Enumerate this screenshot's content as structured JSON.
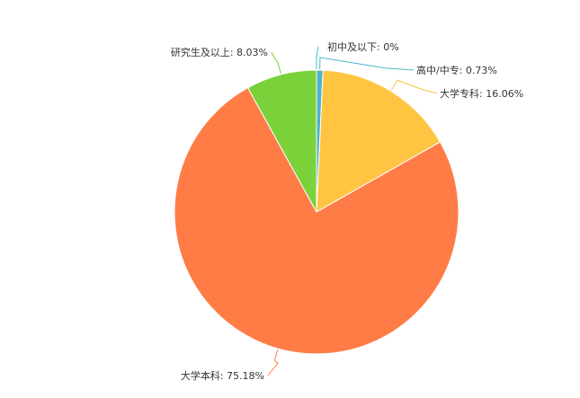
{
  "chart_data": {
    "type": "pie",
    "title": "",
    "slices": [
      {
        "label": "初中及以下",
        "value": 0,
        "display": "初中及以下: 0%",
        "color": "#2ec7c9"
      },
      {
        "label": "高中/中专",
        "value": 0.73,
        "display": "高中/中专: 0.73%",
        "color": "#4fb3c8"
      },
      {
        "label": "大学专科",
        "value": 16.06,
        "display": "大学专科: 16.06%",
        "color": "#ffc542"
      },
      {
        "label": "大学本科",
        "value": 75.18,
        "display": "大学本科: 75.18%",
        "color": "#ff7c47"
      },
      {
        "label": "研究生及以上",
        "value": 8.03,
        "display": "研究生及以上: 8.03%",
        "color": "#7ad13a"
      }
    ],
    "start_angle": "top",
    "direction": "clockwise",
    "legend": "none"
  }
}
